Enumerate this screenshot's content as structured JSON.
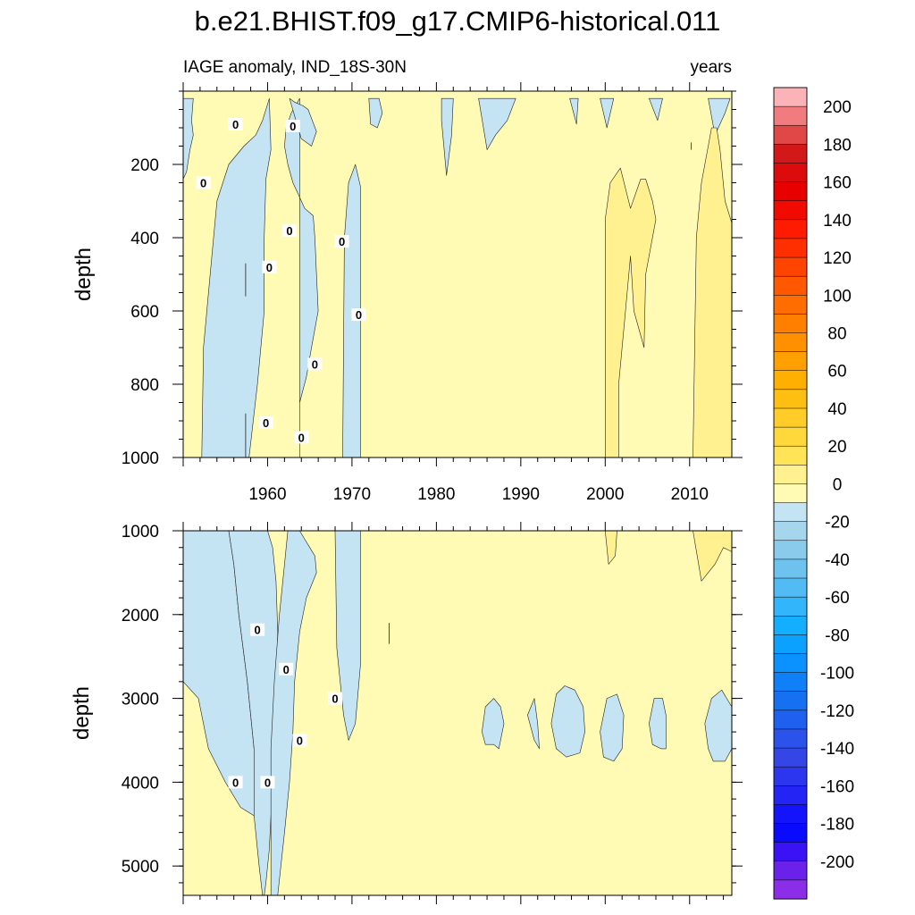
{
  "chart_data": {
    "type": "heatmap",
    "title": "b.e21.BHIST.f09_g17.CMIP6-historical.011",
    "subtitle_left": "IAGE anomaly, IND_18S-30N",
    "subtitle_right": "years",
    "ylabel": "depth",
    "x_range": [
      1950,
      2015
    ],
    "x_ticks": [
      "1960",
      "1970",
      "1980",
      "1990",
      "2000",
      "2010"
    ],
    "contour_label": "0",
    "panels": [
      {
        "name": "upper",
        "ylim": [
          0,
          1000
        ],
        "y_ticks": [
          "200",
          "400",
          "600",
          "800",
          "1000"
        ],
        "background_level": "0 to 10",
        "regions": [
          {
            "level": "0 to -10",
            "x": [
              1952.2,
              1952.4,
              1953.2,
              1954.0,
              1955.4,
              1957.2,
              1958.6,
              1959.4,
              1960.2,
              1960.4,
              1959.8,
              1959.6,
              1959.6,
              1958.8,
              1957.8,
              1955.8,
              1953.8,
              1952.6,
              1952.2
            ],
            "y": [
              1000,
              700,
              500,
              300,
              200,
              150,
              120,
              80,
              20,
              160,
              240,
              400,
              600,
              800,
              1000,
              1000,
              1000,
              1000,
              1000
            ]
          },
          {
            "level": "0 to -10",
            "x": [
              1963.8,
              1963.8,
              1964.6,
              1965.2,
              1966.0,
              1965.8,
              1965.6,
              1965.4,
              1964.4,
              1963.6,
              1963.0,
              1962.4,
              1962.0,
              1962.2,
              1962.8,
              1963.8,
              1963.8
            ],
            "y": [
              1000,
              850,
              780,
              700,
              600,
              500,
              400,
              340,
              320,
              280,
              250,
              200,
              150,
              100,
              60,
              20,
              1000
            ]
          },
          {
            "level": "0 to -10",
            "x": [
              1968.9,
              1969.1,
              1969.6,
              1970.4,
              1971.0,
              1971.0,
              1969.0,
              1968.9
            ],
            "y": [
              1000,
              400,
              250,
              200,
              260,
              1000,
              1000,
              1000
            ]
          },
          {
            "level": "0 to -10",
            "x": [
              1950.0,
              1951.2,
              1951.0,
              1951.2,
              1950.8,
              1950.4,
              1950.0
            ],
            "y": [
              20,
              20,
              80,
              120,
              160,
              220,
              240
            ]
          },
          {
            "level": "0 to -10",
            "x": [
              1962.6,
              1963.2,
              1964.2,
              1964.8,
              1965.8,
              1965.2,
              1964.0,
              1962.6
            ],
            "y": [
              20,
              30,
              40,
              50,
              110,
              150,
              130,
              20
            ]
          },
          {
            "level": "0 to -10",
            "x": [
              1972.0,
              1973.2,
              1973.6,
              1973.0,
              1972.2,
              1972.0
            ],
            "y": [
              20,
              20,
              60,
              100,
              90,
              20
            ]
          },
          {
            "level": "0 to -10",
            "x": [
              1980.6,
              1982.0,
              1981.8,
              1981.2,
              1980.6
            ],
            "y": [
              20,
              20,
              120,
              230,
              80
            ]
          },
          {
            "level": "0 to -10",
            "x": [
              1985.0,
              1989.4,
              1988.4,
              1987.0,
              1986.0,
              1985.0
            ],
            "y": [
              20,
              20,
              80,
              120,
              160,
              20
            ]
          },
          {
            "level": "0 to -10",
            "x": [
              1995.8,
              1996.8,
              1996.6,
              1995.8
            ],
            "y": [
              20,
              20,
              90,
              20
            ]
          },
          {
            "level": "0 to -10",
            "x": [
              1999.4,
              2001.0,
              2000.2,
              1999.4
            ],
            "y": [
              20,
              20,
              100,
              20
            ]
          },
          {
            "level": "0 to -10",
            "x": [
              2005.2,
              2006.8,
              2006.2,
              2005.2
            ],
            "y": [
              20,
              20,
              80,
              20
            ]
          },
          {
            "level": "0 to -10",
            "x": [
              2012.2,
              2014.8,
              2014.2,
              2013.0,
              2012.2
            ],
            "y": [
              20,
              20,
              60,
              120,
              20
            ]
          }
        ],
        "positive_regions": [
          {
            "level": "10 to 20",
            "x": [
              2000.0,
              2000.0,
              2000.6,
              2001.8,
              2003.0,
              2004.2,
              2004.8,
              2005.6,
              2006.0,
              2004.8,
              2004.6,
              2003.4,
              2003.0,
              2002.4,
              2001.6,
              2001.6,
              2000.0
            ],
            "y": [
              1000,
              350,
              250,
              210,
              320,
              240,
              240,
              300,
              350,
              500,
              700,
              600,
              450,
              600,
              800,
              1000,
              1000
            ]
          },
          {
            "level": "10 to 20",
            "x": [
              2010.4,
              2010.8,
              2011.4,
              2012.2,
              2012.6,
              2013.2,
              2013.6,
              2014.2,
              2015.0,
              2015.0,
              2010.4
            ],
            "y": [
              1000,
              400,
              250,
              150,
              100,
              100,
              160,
              300,
              360,
              1000,
              1000
            ]
          }
        ]
      },
      {
        "name": "lower",
        "ylim": [
          1000,
          5350
        ],
        "y_ticks": [
          "1000",
          "2000",
          "3000",
          "4000",
          "5000"
        ],
        "background_level": "0 to 10",
        "regions": [
          {
            "level": "0 to -10",
            "x": [
              1950.0,
              1951.8,
              1953.0,
              1955.0,
              1956.8,
              1958.4,
              1958.4,
              1957.6,
              1956.6,
              1956.0,
              1955.4,
              1954.6,
              1953.0,
              1951.6,
              1950.8,
              1950.0
            ],
            "y": [
              2800,
              3000,
              3600,
              4000,
              4300,
              4400,
              3600,
              2800,
              2000,
              1400,
              1000,
              1000,
              1000,
              1000,
              1000,
              1000
            ]
          },
          {
            "level": "0 to -10",
            "x": [
              1955.4,
              1956.0,
              1956.6,
              1957.6,
              1958.4,
              1958.4,
              1958.6,
              1959.0,
              1959.4,
              1959.6,
              1959.8,
              1960.2,
              1960.4,
              1960.8,
              1961.0,
              1961.2,
              1961.0,
              1960.6,
              1960.0,
              1960.0,
              1959.6,
              1958.6,
              1957.8,
              1955.4
            ],
            "y": [
              1000,
              1400,
              2000,
              2800,
              3600,
              4400,
              4600,
              5000,
              5350,
              5350,
              5200,
              4800,
              4400,
              3800,
              3000,
              2200,
              1600,
              1200,
              1000,
              1000,
              1000,
              1000,
              1000,
              1000
            ]
          },
          {
            "level": "0 to -10",
            "x": [
              1962.4,
              1962.0,
              1961.4,
              1960.8,
              1960.4,
              1960.4,
              1961.2,
              1962.0,
              1962.6,
              1963.0,
              1963.2,
              1963.8,
              1964.6,
              1965.8,
              1965.6,
              1965.0,
              1964.4,
              1963.8,
              1962.8,
              1962.4
            ],
            "y": [
              1000,
              1400,
              2000,
              2800,
              3600,
              5350,
              5350,
              4600,
              4000,
              3400,
              2800,
              2200,
              1800,
              1500,
              1300,
              1200,
              1100,
              1000,
              1000,
              1000
            ]
          },
          {
            "level": "0 to -10",
            "x": [
              1968.0,
              1968.2,
              1969.0,
              1969.6,
              1970.4,
              1971.0,
              1971.0,
              1969.6,
              1968.0
            ],
            "y": [
              1000,
              2400,
              3200,
              3500,
              3300,
              2600,
              1000,
              1000,
              1000
            ]
          },
          {
            "level": "0 to -10",
            "x": [
              1985.4,
              1985.8,
              1986.8,
              1987.6,
              1988.0,
              1987.4,
              1986.8,
              1985.8,
              1985.4
            ],
            "y": [
              3400,
              3100,
              3000,
              3100,
              3300,
              3600,
              3550,
              3550,
              3400
            ]
          },
          {
            "level": "0 to -10",
            "x": [
              1990.8,
              1991.6,
              1992.0,
              1992.2,
              1991.6,
              1990.8
            ],
            "y": [
              3200,
              3000,
              3300,
              3600,
              3500,
              3200
            ]
          },
          {
            "level": "0 to -10",
            "x": [
              1993.6,
              1994.2,
              1995.2,
              1996.4,
              1997.4,
              1997.6,
              1997.0,
              1995.4,
              1994.2,
              1993.6
            ],
            "y": [
              3300,
              2950,
              2850,
              2900,
              3100,
              3400,
              3650,
              3700,
              3600,
              3300
            ]
          },
          {
            "level": "0 to -10",
            "x": [
              1999.4,
              2000.2,
              2001.4,
              2002.2,
              2002.0,
              2001.0,
              1999.8,
              1999.4
            ],
            "y": [
              3400,
              3000,
              2950,
              3200,
              3600,
              3750,
              3700,
              3400
            ]
          },
          {
            "level": "0 to -10",
            "x": [
              2005.2,
              2005.8,
              2006.8,
              2007.2,
              2007.2,
              2006.6,
              2005.6,
              2005.2
            ],
            "y": [
              3300,
              3000,
              3000,
              3200,
              3600,
              3600,
              3550,
              3300
            ]
          },
          {
            "level": "0 to -10",
            "x": [
              2011.8,
              2012.6,
              2013.8,
              2014.4,
              2015.0,
              2015.0,
              2014.2,
              2012.8,
              2012.2,
              2011.8
            ],
            "y": [
              3300,
              3000,
              2900,
              3000,
              3100,
              3600,
              3750,
              3750,
              3600,
              3300
            ]
          }
        ],
        "positive_regions": [
          {
            "level": "10 to 20",
            "x": [
              2000.0,
              2001.4,
              2001.2,
              2000.4,
              2000.0
            ],
            "y": [
              1000,
              1000,
              1300,
              1400,
              1000
            ]
          },
          {
            "level": "10 to 20",
            "x": [
              2010.4,
              2015.0,
              2015.0,
              2014.0,
              2013.0,
              2011.4,
              2010.4
            ],
            "y": [
              1000,
              1000,
              1250,
              1200,
              1400,
              1600,
              1000
            ]
          }
        ]
      }
    ],
    "contour_label_positions": [
      {
        "panel": "upper",
        "x": 1956.2,
        "y": 90
      },
      {
        "panel": "upper",
        "x": 1963.0,
        "y": 95
      },
      {
        "panel": "upper",
        "x": 1952.4,
        "y": 250
      },
      {
        "panel": "upper",
        "x": 1962.6,
        "y": 380
      },
      {
        "panel": "upper",
        "x": 1968.8,
        "y": 410
      },
      {
        "panel": "upper",
        "x": 1960.2,
        "y": 480
      },
      {
        "panel": "upper",
        "x": 1970.8,
        "y": 610
      },
      {
        "panel": "upper",
        "x": 1965.6,
        "y": 745
      },
      {
        "panel": "upper",
        "x": 1959.8,
        "y": 905
      },
      {
        "panel": "upper",
        "x": 1964.0,
        "y": 945
      },
      {
        "panel": "lower",
        "x": 1958.8,
        "y": 2180
      },
      {
        "panel": "lower",
        "x": 1962.2,
        "y": 2650
      },
      {
        "panel": "lower",
        "x": 1968.0,
        "y": 3000
      },
      {
        "panel": "lower",
        "x": 1963.8,
        "y": 3500
      },
      {
        "panel": "lower",
        "x": 1956.2,
        "y": 4000
      },
      {
        "panel": "lower",
        "x": 1960.0,
        "y": 4000
      }
    ],
    "colorbar": {
      "labels": [
        "200",
        "180",
        "160",
        "140",
        "120",
        "100",
        "80",
        "60",
        "40",
        "20",
        "0",
        "-20",
        "-40",
        "-60",
        "-80",
        "-100",
        "-120",
        "-140",
        "-160",
        "-180",
        "-200"
      ],
      "colors": [
        "#fcb3b8",
        "#f07c80",
        "#e04848",
        "#d21818",
        "#dc0c0c",
        "#e60000",
        "#f00a00",
        "#ff1a00",
        "#ff2f00",
        "#ff4400",
        "#ff5800",
        "#ff6c00",
        "#ff8000",
        "#ff9000",
        "#ffa000",
        "#ffaf00",
        "#ffbf12",
        "#ffcc28",
        "#ffd83c",
        "#ffe458",
        "#fff090",
        "#fffbb4",
        "#c4e4f4",
        "#a6d6ee",
        "#8acbeb",
        "#6ec2ee",
        "#52bbf4",
        "#32b5fa",
        "#14aefe",
        "#0aa2fe",
        "#0c92fe",
        "#1080f8",
        "#1670f2",
        "#2060ee",
        "#2b52ea",
        "#3446e6",
        "#2c36ee",
        "#2424f4",
        "#1414fa",
        "#0a0aff",
        "#3a12f4",
        "#6a22ea",
        "#8c2ee8"
      ]
    }
  }
}
